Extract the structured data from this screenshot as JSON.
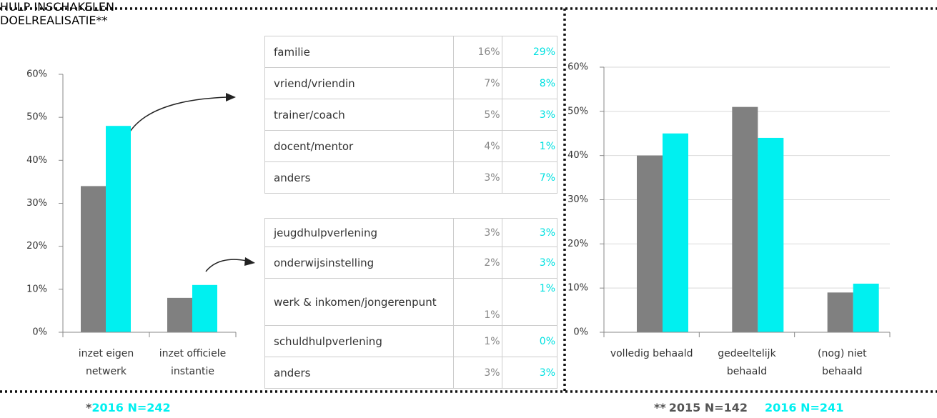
{
  "chart_data": [
    {
      "type": "bar",
      "title": "HULP INSCHAKELEN",
      "categories": [
        "inzet eigen netwerk",
        "inzet officiele instantie"
      ],
      "series": [
        {
          "color": "#808080",
          "values": [
            34,
            8
          ]
        },
        {
          "name": "2016 N=242",
          "color": "#00f0f0",
          "values": [
            48,
            11
          ]
        }
      ],
      "footnote_mark": "*",
      "ylim": [
        0,
        60
      ],
      "yticks": [
        {
          "value": 0,
          "label": "0%"
        },
        {
          "value": 10,
          "label": "10%"
        },
        {
          "value": 20,
          "label": "20%"
        },
        {
          "value": 30,
          "label": "30%"
        },
        {
          "value": 40,
          "label": "40%"
        },
        {
          "value": 50,
          "label": "50%"
        },
        {
          "value": 60,
          "label": "60%"
        }
      ],
      "grid": false
    },
    {
      "type": "bar",
      "title": "DOELREALISATIE**",
      "categories": [
        "volledig behaald",
        "gedeeltelijk behaald",
        "(nog) niet behaald"
      ],
      "series": [
        {
          "name": "2015 N=142",
          "color": "#808080",
          "values": [
            40,
            51,
            9
          ]
        },
        {
          "name": "2016 N=241",
          "color": "#00f0f0",
          "values": [
            45,
            44,
            11
          ]
        }
      ],
      "footnote_mark": "**",
      "ylim": [
        0,
        60
      ],
      "yticks": [
        {
          "value": 0,
          "label": "0%"
        },
        {
          "value": 10,
          "label": "10%"
        },
        {
          "value": 20,
          "label": "20%"
        },
        {
          "value": 30,
          "label": "30%"
        },
        {
          "value": 40,
          "label": "40%"
        },
        {
          "value": 50,
          "label": "50%"
        },
        {
          "value": 60,
          "label": "60%"
        }
      ],
      "grid": true
    }
  ],
  "tables": [
    {
      "rows": [
        [
          "familie",
          "16%",
          "29%"
        ],
        [
          "vriend/vriendin",
          "7%",
          "8%"
        ],
        [
          "trainer/coach",
          "5%",
          "3%"
        ],
        [
          "docent/mentor",
          "4%",
          "1%"
        ],
        [
          "anders",
          "3%",
          "7%"
        ]
      ]
    },
    {
      "rows": [
        [
          "jeugdhulpverlening",
          "3%",
          "3%"
        ],
        [
          "onderwijsinstelling",
          "2%",
          "3%"
        ],
        [
          "werk & inkomen/jongerenpunt",
          "1%",
          "1%"
        ],
        [
          "schuldhulpverlening",
          "1%",
          "0%"
        ],
        [
          "anders",
          "3%",
          "3%"
        ]
      ]
    }
  ]
}
